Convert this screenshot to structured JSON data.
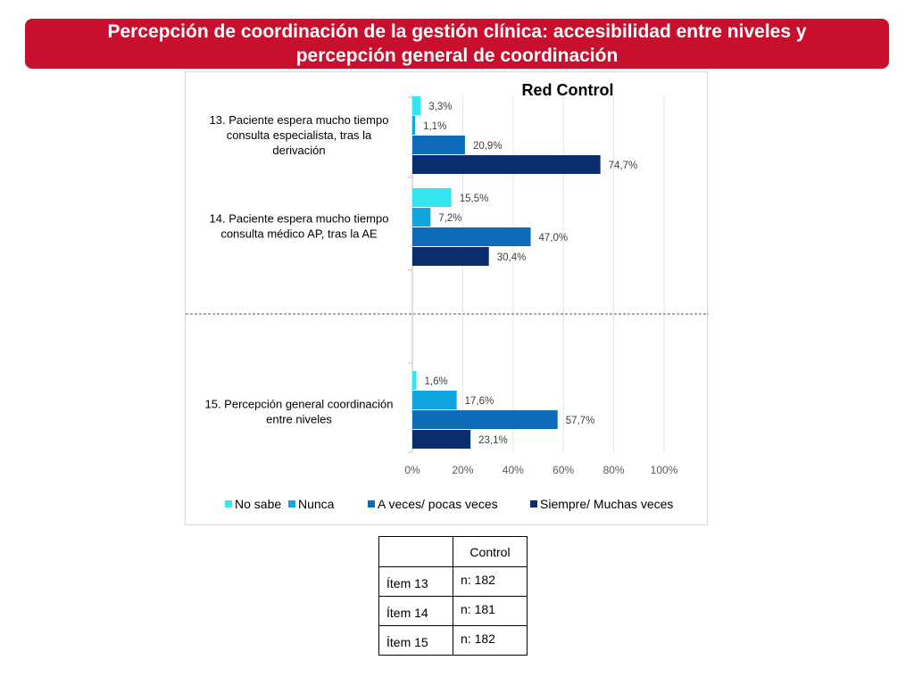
{
  "slide_title": "Percepción de coordinación de la gestión clínica: accesibilidad entre niveles y percepción general de coordinación",
  "chart_data": {
    "type": "bar",
    "orientation": "horizontal",
    "title": "Red Control",
    "categories": [
      "13. Paciente espera mucho tiempo consulta especialista, tras la derivación",
      "14. Paciente espera mucho tiempo consulta  médico AP, tras la AE",
      "15. Percepción general coordinación entre niveles"
    ],
    "category_lines": [
      [
        "13. Paciente espera mucho tiempo",
        "consulta especialista, tras la",
        "derivación"
      ],
      [
        "14. Paciente espera mucho tiempo",
        "consulta  médico AP, tras la AE"
      ],
      [
        "15. Percepción general coordinación",
        "entre niveles"
      ]
    ],
    "series": [
      {
        "name": "No sabe",
        "color": "#33e6f0",
        "values": [
          3.3,
          15.5,
          1.6
        ],
        "labels": [
          "3,3%",
          "15,5%",
          "1,6%"
        ]
      },
      {
        "name": "Nunca",
        "color": "#0fa6e0",
        "values": [
          1.1,
          7.2,
          17.6
        ],
        "labels": [
          "1,1%",
          "7,2%",
          "17,6%"
        ]
      },
      {
        "name": "A veces/ pocas veces",
        "color": "#0f6cba",
        "values": [
          20.9,
          47.0,
          57.7
        ],
        "labels": [
          "20,9%",
          "47,0%",
          "57,7%"
        ]
      },
      {
        "name": "Siempre/ Muchas veces",
        "color": "#0a2d6e",
        "values": [
          74.7,
          30.4,
          23.1
        ],
        "labels": [
          "74,7%",
          "30,4%",
          "23,1%"
        ]
      }
    ],
    "xlim": [
      0,
      100
    ],
    "xticks": [
      0,
      20,
      40,
      60,
      80,
      100
    ],
    "xtick_labels": [
      "0%",
      "20%",
      "40%",
      "60%",
      "80%",
      "100%"
    ],
    "grid": true,
    "legend_position": "bottom",
    "separator_line": "dashed, between item 14 and item 15"
  },
  "table": {
    "header": [
      "",
      "Control"
    ],
    "rows": [
      {
        "item": "Ítem 13",
        "n": "n: 182"
      },
      {
        "item": "Ítem 14",
        "n": "n: 181"
      },
      {
        "item": "Ítem 15",
        "n": "n: 182"
      }
    ]
  }
}
